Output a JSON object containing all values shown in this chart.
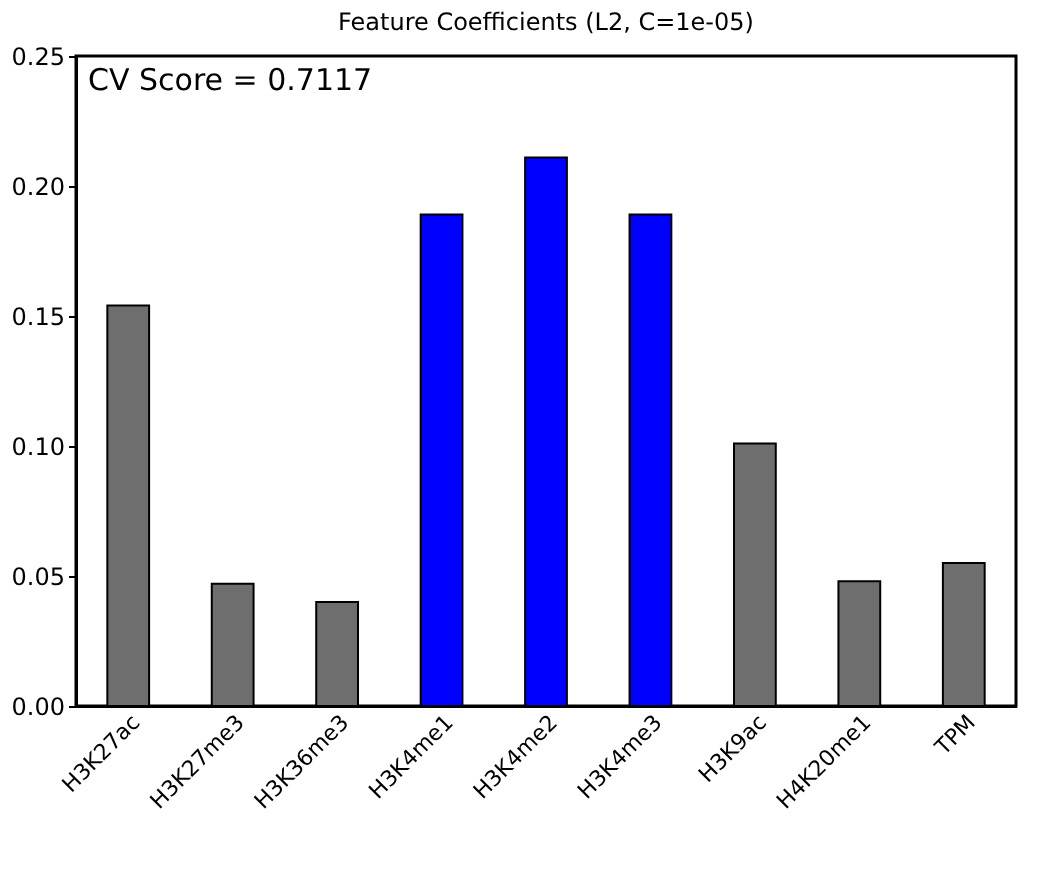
{
  "chart_data": {
    "type": "bar",
    "title": "Feature Coefficients (L2, C=1e-05)",
    "categories": [
      "H3K27ac",
      "H3K27me3",
      "H3K36me3",
      "H3K4me1",
      "H3K4me2",
      "H3K4me3",
      "H3K9ac",
      "H4K20me1",
      "TPM"
    ],
    "values": [
      0.154,
      0.047,
      0.04,
      0.189,
      0.211,
      0.189,
      0.101,
      0.048,
      0.055
    ],
    "colors": [
      "#6e6e6e",
      "#6e6e6e",
      "#6e6e6e",
      "#0000ff",
      "#0000ff",
      "#0000ff",
      "#6e6e6e",
      "#6e6e6e",
      "#6e6e6e"
    ],
    "ylim": [
      0,
      0.25
    ],
    "yticks": [
      {
        "value": 0,
        "label": "0.00"
      },
      0.05,
      {
        "value": 0.1,
        "label": "0.10"
      },
      0.15,
      {
        "value": 0.2,
        "label": "0.20"
      },
      0.25
    ],
    "annotations": [
      "CV Score = 0.7117"
    ],
    "grid": false
  }
}
